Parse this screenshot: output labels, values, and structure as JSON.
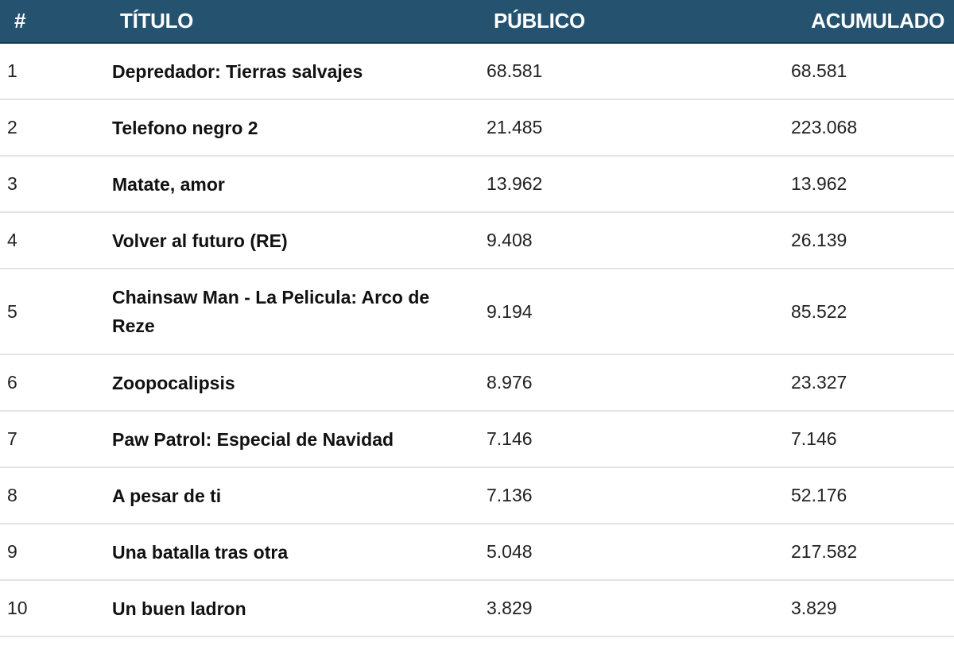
{
  "table": {
    "headers": {
      "rank": "#",
      "title": "TÍTULO",
      "audience": "PÚBLICO",
      "cumulative": "ACUMULADO"
    },
    "header_bg": "#24526f",
    "rows": [
      {
        "rank": "1",
        "title": "Depredador: Tierras salvajes",
        "audience": "68.581",
        "cumulative": "68.581"
      },
      {
        "rank": "2",
        "title": "Telefono negro 2",
        "audience": "21.485",
        "cumulative": "223.068"
      },
      {
        "rank": "3",
        "title": "Matate, amor",
        "audience": "13.962",
        "cumulative": "13.962"
      },
      {
        "rank": "4",
        "title": "Volver al futuro (RE)",
        "audience": "9.408",
        "cumulative": "26.139"
      },
      {
        "rank": "5",
        "title": "Chainsaw Man - La Pelicula: Arco de Reze",
        "audience": "9.194",
        "cumulative": "85.522"
      },
      {
        "rank": "6",
        "title": "Zoopocalipsis",
        "audience": "8.976",
        "cumulative": "23.327"
      },
      {
        "rank": "7",
        "title": "Paw Patrol: Especial de Navidad",
        "audience": "7.146",
        "cumulative": "7.146"
      },
      {
        "rank": "8",
        "title": "A pesar de ti",
        "audience": "7.136",
        "cumulative": "52.176"
      },
      {
        "rank": "9",
        "title": "Una batalla tras otra",
        "audience": "5.048",
        "cumulative": "217.582"
      },
      {
        "rank": "10",
        "title": "Un buen ladron",
        "audience": "3.829",
        "cumulative": "3.829"
      }
    ]
  }
}
